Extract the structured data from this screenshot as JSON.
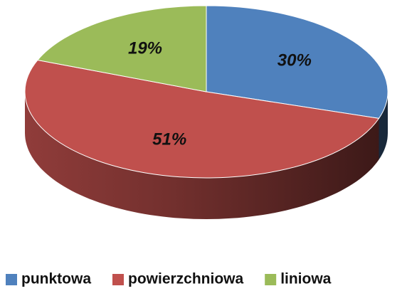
{
  "chart_data": {
    "type": "pie",
    "categories": [
      "punktowa",
      "powierzchniowa",
      "liniowa"
    ],
    "values": [
      30,
      51,
      19
    ],
    "value_labels": [
      "30%",
      "51%",
      "19%"
    ],
    "colors": [
      "#4f81bd",
      "#c0504d",
      "#9bbb59"
    ],
    "legend": "bottom"
  }
}
